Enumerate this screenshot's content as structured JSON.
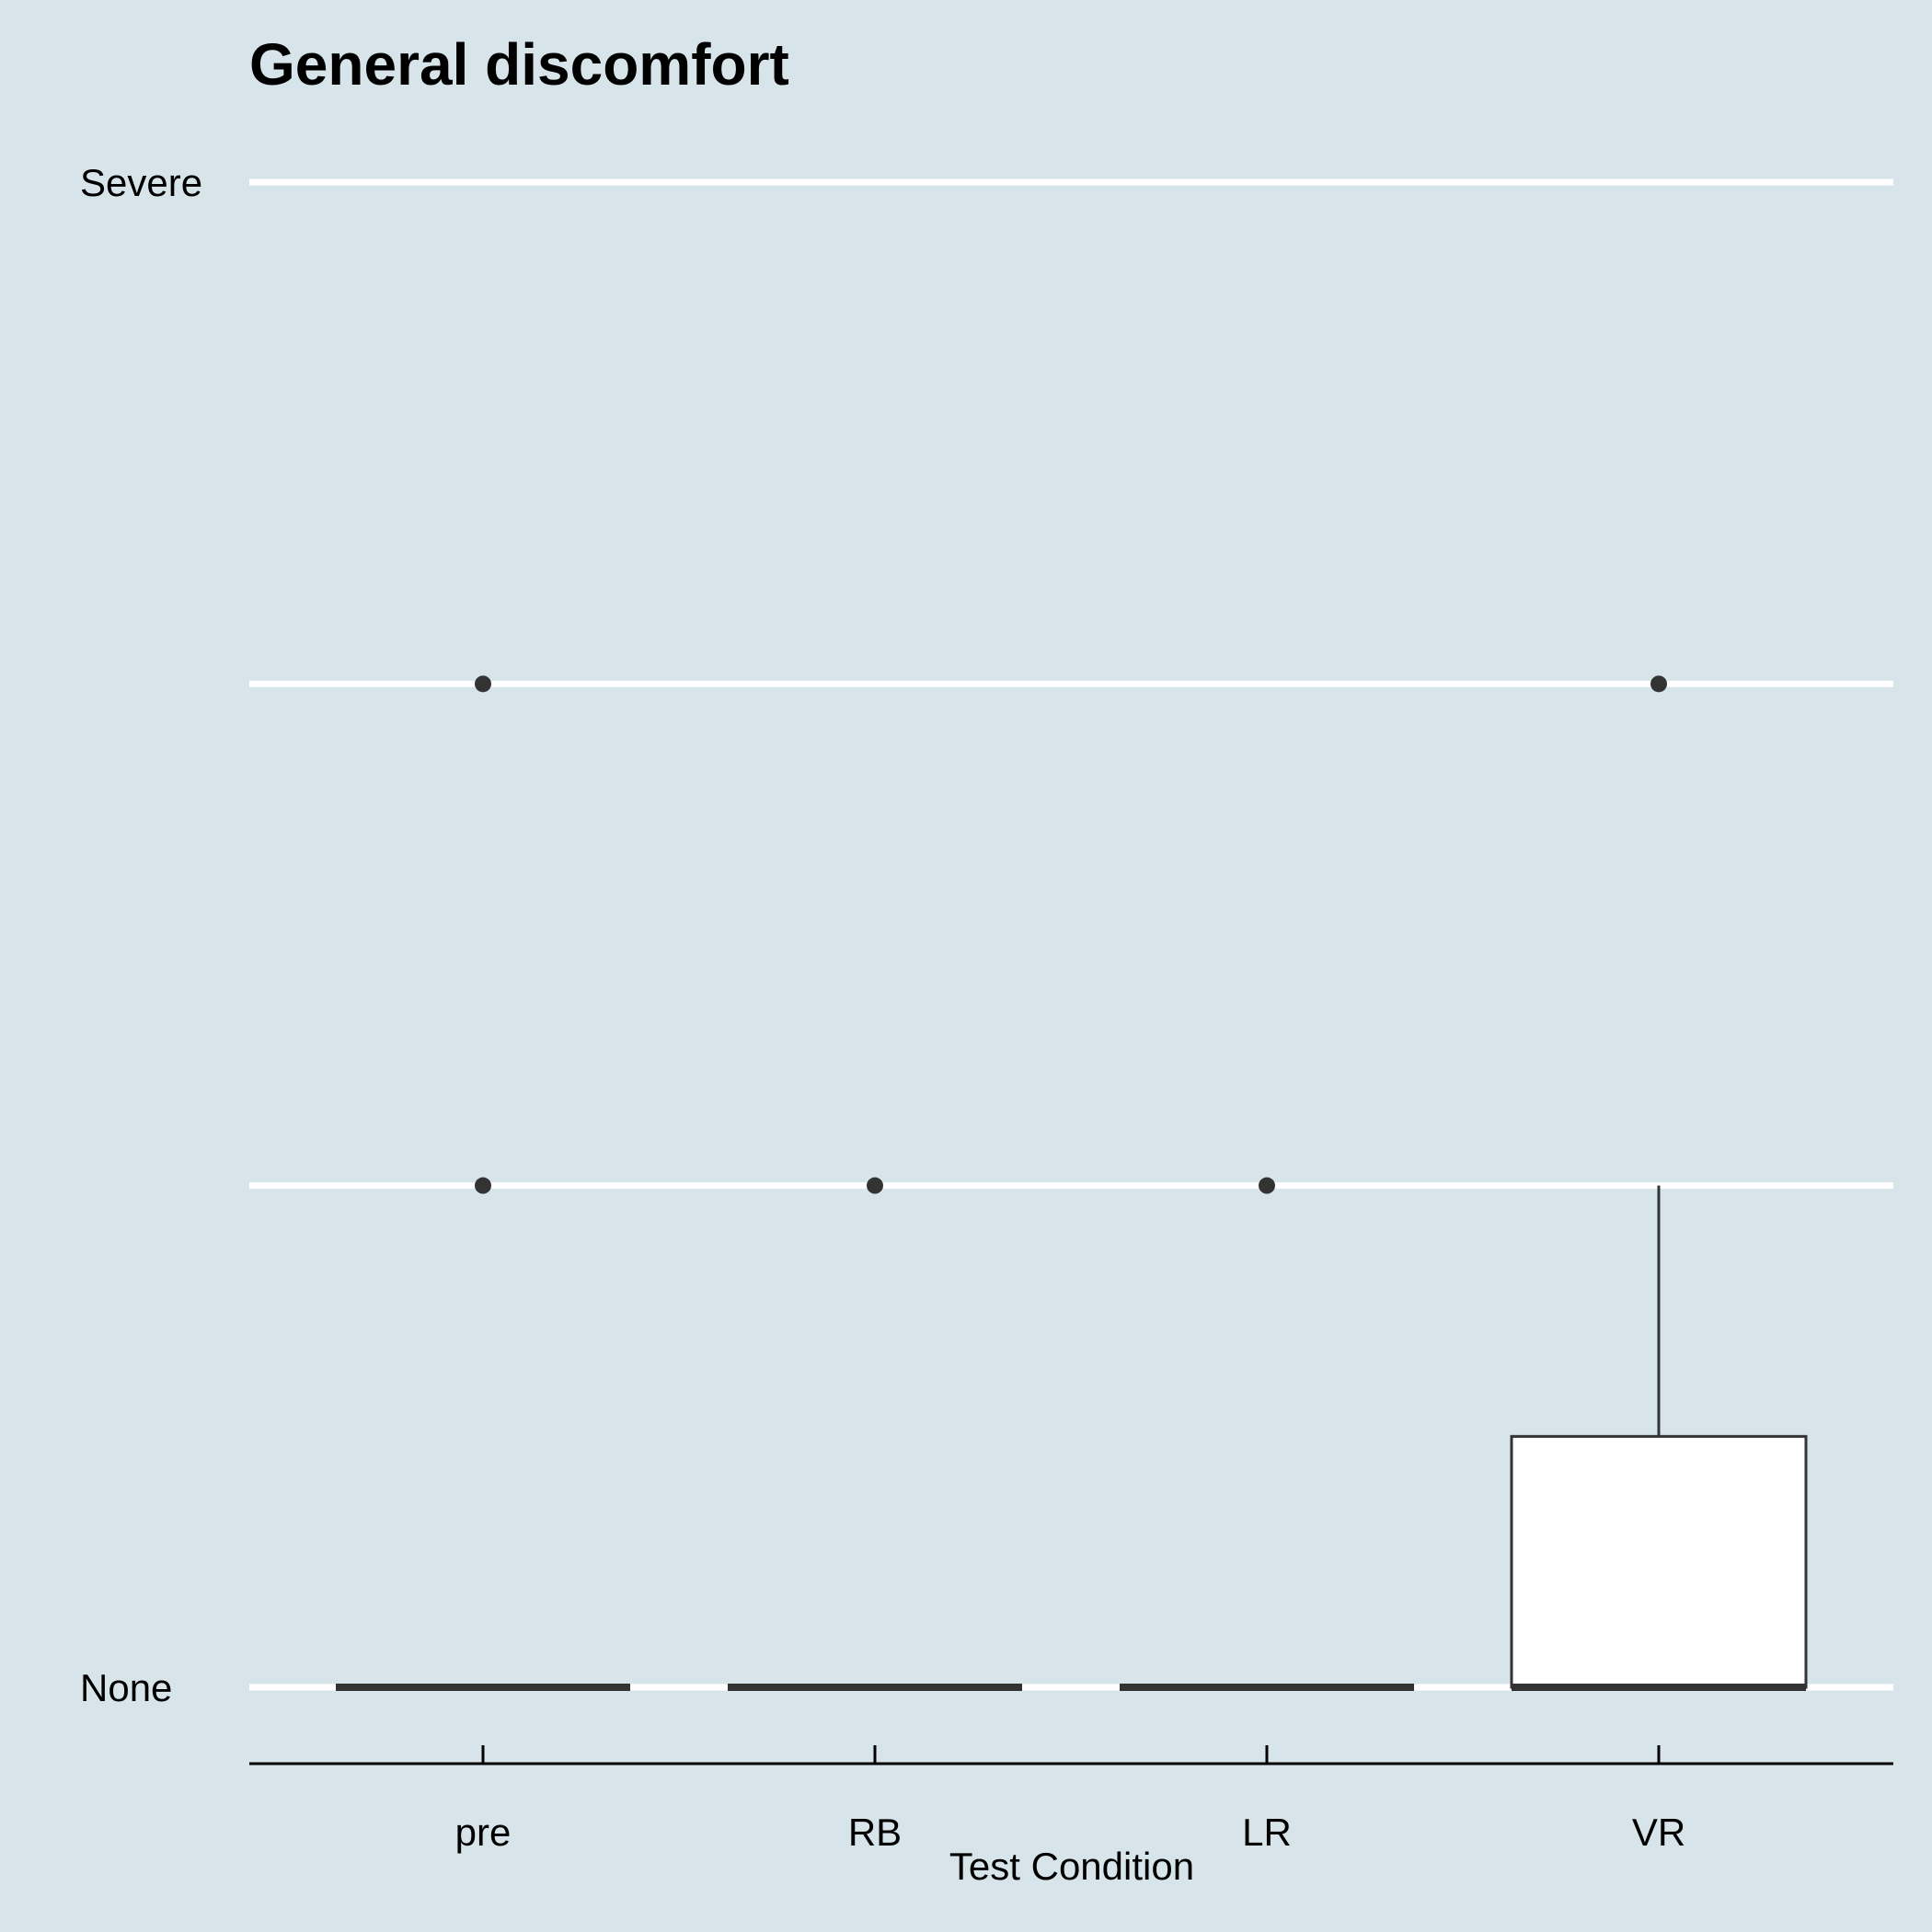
{
  "chart_data": {
    "type": "box",
    "title": "General discomfort",
    "xlabel": "Test Condition",
    "ylabel": "",
    "categories": [
      "pre",
      "RB",
      "LR",
      "VR"
    ],
    "y_levels": [
      0,
      1,
      2,
      3
    ],
    "y_tick_labels": [
      "None",
      "",
      "",
      "Severe"
    ],
    "ylim": [
      0,
      3
    ],
    "grid": true,
    "legend": "none",
    "colors": {
      "background": "#d7e5eb",
      "grid": "#ffffff",
      "box_fill": "#ffffff",
      "box_stroke": "#333333",
      "point": "#333333"
    },
    "boxes": [
      {
        "category": "pre",
        "min": 0,
        "q1": 0,
        "median": 0,
        "q3": 0,
        "max": 0,
        "outliers": [
          1,
          2
        ]
      },
      {
        "category": "RB",
        "min": 0,
        "q1": 0,
        "median": 0,
        "q3": 0,
        "max": 0,
        "outliers": [
          1
        ]
      },
      {
        "category": "LR",
        "min": 0,
        "q1": 0,
        "median": 0,
        "q3": 0,
        "max": 0,
        "outliers": [
          1
        ]
      },
      {
        "category": "VR",
        "min": 0,
        "q1": 0,
        "median": 0,
        "q3": 0.5,
        "max": 1,
        "outliers": [
          2
        ]
      }
    ]
  }
}
